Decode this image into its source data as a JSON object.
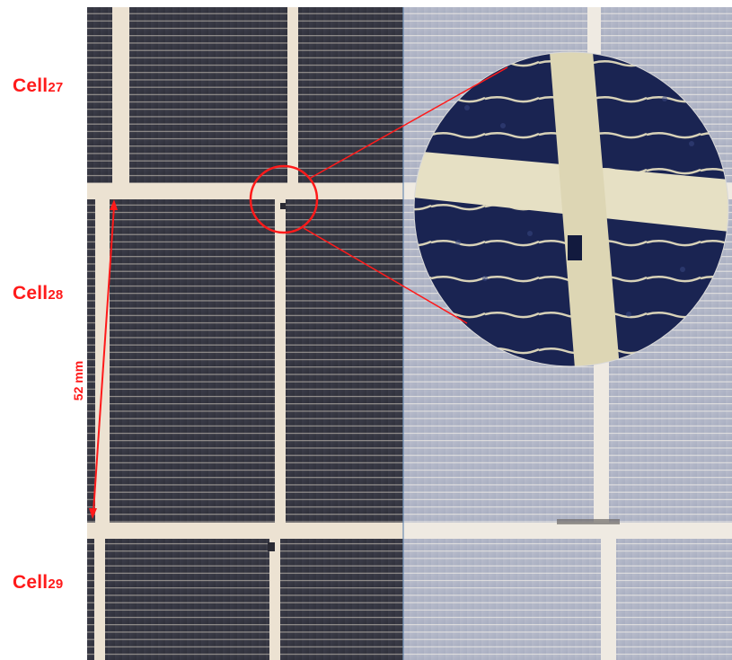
{
  "labels": {
    "cell27": {
      "prefix": "Cell",
      "number": "27"
    },
    "cell28": {
      "prefix": "Cell",
      "number": "28"
    },
    "cell29": {
      "prefix": "Cell",
      "number": "29"
    },
    "dimension": "52 mm"
  },
  "colors": {
    "annotation": "#ff1a1a",
    "cell_dark": "#33343f",
    "cell_light": "#aeb4c6",
    "busbar": "#efe6d8",
    "zoom_blue": "#16204a"
  }
}
